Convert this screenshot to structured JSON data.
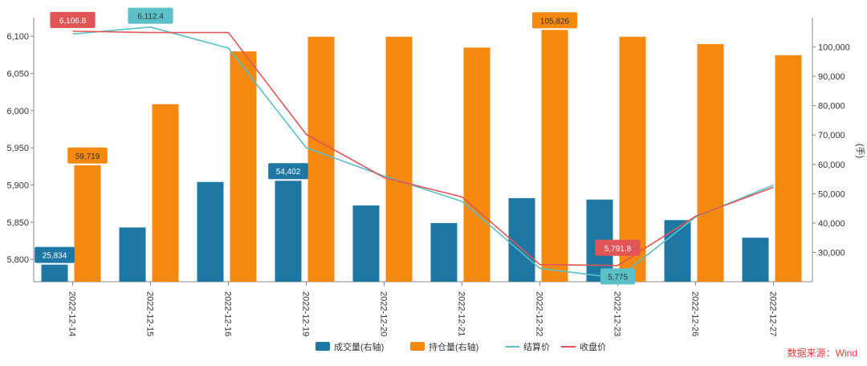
{
  "chart_data": {
    "type": "bar",
    "categories": [
      "2022-12-14",
      "2022-12-15",
      "2022-12-16",
      "2022-12-19",
      "2022-12-20",
      "2022-12-21",
      "2022-12-22",
      "2022-12-23",
      "2022-12-26",
      "2022-12-27"
    ],
    "series": [
      {
        "name": "成交量(右轴)",
        "type": "bar",
        "axis": "right",
        "color": "#1f77a4",
        "values": [
          25834,
          38500,
          54000,
          54402,
          46000,
          40000,
          48500,
          48000,
          41000,
          35000
        ]
      },
      {
        "name": "持仓量(右轴)",
        "type": "bar",
        "axis": "right",
        "color": "#f5890f",
        "values": [
          59719,
          80500,
          98500,
          103500,
          103500,
          99800,
          105826,
          103500,
          101000,
          97200
        ]
      },
      {
        "name": "结算价",
        "type": "line",
        "axis": "left",
        "color": "#5bc0c7",
        "values": [
          6103,
          6112.4,
          6084,
          5950,
          5912,
          5878,
          5788,
          5775,
          5857,
          5900
        ]
      },
      {
        "name": "收盘价",
        "type": "line",
        "axis": "left",
        "color": "#e05555",
        "values": [
          6106.8,
          6105,
          6105,
          5968,
          5910,
          5884,
          5793,
          5791.8,
          5858,
          5897
        ]
      }
    ],
    "data_labels": [
      {
        "series": 0,
        "index": 0,
        "text": "25,834"
      },
      {
        "series": 0,
        "index": 3,
        "text": "54,402"
      },
      {
        "series": 1,
        "index": 0,
        "text": "59,719"
      },
      {
        "series": 1,
        "index": 6,
        "text": "105,826"
      },
      {
        "series": 2,
        "index": 1,
        "text": "6,112.4"
      },
      {
        "series": 2,
        "index": 7,
        "text": "5,775"
      },
      {
        "series": 3,
        "index": 0,
        "text": "6,106.8"
      },
      {
        "series": 3,
        "index": 7,
        "text": "5,791.8"
      }
    ],
    "left_axis": {
      "min": 5770,
      "max": 6125,
      "ticks": [
        5800,
        5850,
        5900,
        5950,
        6000,
        6050,
        6100
      ],
      "tick_labels": [
        "5,800",
        "5,850",
        "5,900",
        "5,950",
        "6,000",
        "6,050",
        "6,100"
      ]
    },
    "right_axis": {
      "min": 20000,
      "max": 110000,
      "ticks": [
        30000,
        40000,
        50000,
        60000,
        70000,
        80000,
        90000,
        100000
      ],
      "tick_labels": [
        "30,000",
        "40,000",
        "50,000",
        "60,000",
        "70,000",
        "80,000",
        "90,000",
        "100,000"
      ]
    },
    "right_axis_unit": "(手)",
    "legend_position": "bottom-center",
    "grid": false
  },
  "source_text": "数据来源：Wind"
}
